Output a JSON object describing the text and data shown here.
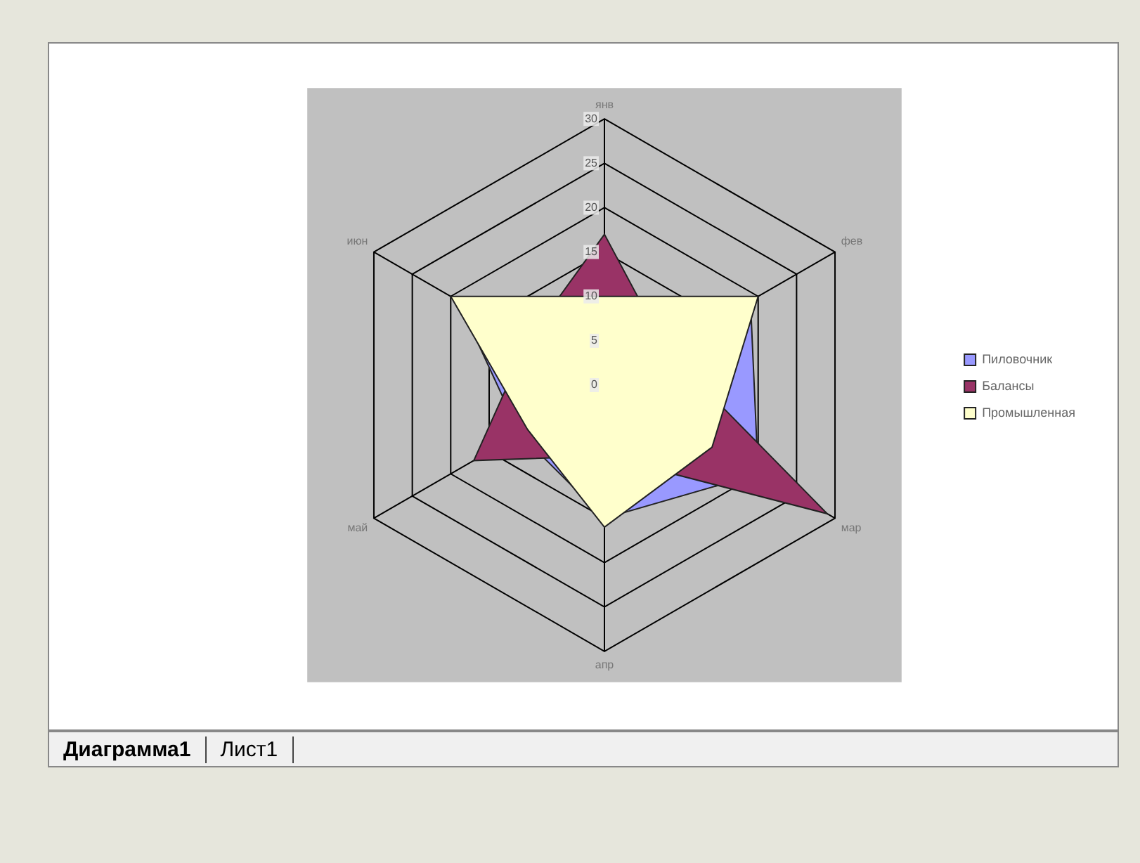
{
  "chart_data": {
    "type": "radar",
    "categories": [
      "янв",
      "фев",
      "мар",
      "апр",
      "май",
      "июн"
    ],
    "series": [
      {
        "name": "Пиловочник",
        "color": "#9999ff",
        "values": [
          9,
          19,
          20,
          15,
          11,
          19
        ]
      },
      {
        "name": "Балансы",
        "color": "#993366",
        "values": [
          17,
          8,
          29,
          8,
          17,
          10
        ]
      },
      {
        "name": "Промышленная",
        "color": "#ffffcc",
        "values": [
          10,
          20,
          14,
          16,
          10,
          20
        ]
      }
    ],
    "ylim": [
      0,
      30
    ],
    "yticks": [
      0,
      5,
      10,
      15,
      20,
      25,
      30
    ],
    "grid": true,
    "legend": "right",
    "annotations": [
      "Диаграмма1",
      "Лист1"
    ]
  }
}
